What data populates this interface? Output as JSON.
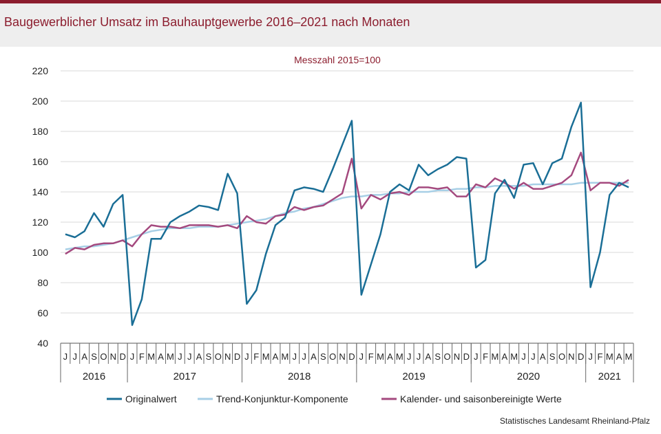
{
  "title": "Baugewerblicher Umsatz im Bauhauptgewerbe 2016–2021 nach Monaten",
  "source": "Statistisches Landesamt Rheinland-Pfalz",
  "colors": {
    "brand": "#8c1d2e",
    "original": "#1a6e96",
    "trend": "#a7cfe6",
    "adjusted": "#a4497e"
  },
  "chart_data": {
    "type": "line",
    "title": "",
    "subtitle": "Messzahl 2015=100",
    "xlabel": "",
    "ylabel": "",
    "ylim": [
      40,
      220
    ],
    "yticks": [
      40,
      60,
      80,
      100,
      120,
      140,
      160,
      180,
      200,
      220
    ],
    "grid": "horizontal",
    "legend_position": "bottom",
    "month_labels": [
      "J",
      "J",
      "A",
      "S",
      "O",
      "N",
      "D",
      "J",
      "F",
      "M",
      "A",
      "M",
      "J",
      "J",
      "A",
      "S",
      "O",
      "N",
      "D",
      "J",
      "F",
      "M",
      "A",
      "M",
      "J",
      "J",
      "A",
      "S",
      "O",
      "N",
      "D",
      "J",
      "F",
      "M",
      "A",
      "M",
      "J",
      "J",
      "A",
      "S",
      "O",
      "N",
      "D",
      "J",
      "F",
      "M",
      "A",
      "M",
      "J",
      "J",
      "A",
      "S",
      "O",
      "N",
      "D",
      "J",
      "F",
      "M",
      "A",
      "M"
    ],
    "year_groups": [
      {
        "label": "2016",
        "months": 7
      },
      {
        "label": "2017",
        "months": 12
      },
      {
        "label": "2018",
        "months": 12
      },
      {
        "label": "2019",
        "months": 12
      },
      {
        "label": "2020",
        "months": 12
      },
      {
        "label": "2021",
        "months": 5
      }
    ],
    "series": [
      {
        "name": "Originalwert",
        "values": [
          112,
          110,
          114,
          126,
          117,
          132,
          138,
          52,
          69,
          109,
          109,
          120,
          124,
          127,
          131,
          130,
          128,
          152,
          139,
          66,
          75,
          99,
          118,
          123,
          141,
          143,
          142,
          140,
          155,
          171,
          187,
          72,
          92,
          112,
          140,
          145,
          141,
          158,
          151,
          155,
          158,
          163,
          162,
          90,
          95,
          139,
          148,
          136,
          158,
          159,
          145,
          159,
          162,
          183,
          199,
          77,
          100,
          138,
          146,
          143
        ]
      },
      {
        "name": "Trend-Konjunktur-Komponente",
        "values": [
          102,
          103,
          104,
          104,
          105,
          106,
          108,
          110,
          112,
          114,
          115,
          116,
          116,
          116,
          117,
          117,
          117,
          118,
          119,
          120,
          121,
          122,
          124,
          126,
          127,
          129,
          130,
          132,
          134,
          136,
          137,
          137,
          138,
          138,
          139,
          139,
          140,
          140,
          140,
          141,
          141,
          142,
          142,
          143,
          143,
          144,
          144,
          144,
          144,
          145,
          145,
          145,
          145,
          145,
          146,
          146,
          146,
          146,
          146,
          146
        ]
      },
      {
        "name": "Kalender- und saisonbereinigte Werte",
        "values": [
          99,
          103,
          102,
          105,
          106,
          106,
          108,
          104,
          112,
          118,
          117,
          117,
          116,
          118,
          118,
          118,
          117,
          118,
          116,
          124,
          120,
          119,
          124,
          125,
          130,
          128,
          130,
          131,
          135,
          139,
          162,
          129,
          138,
          135,
          139,
          140,
          138,
          143,
          143,
          142,
          143,
          137,
          137,
          145,
          143,
          149,
          146,
          142,
          146,
          142,
          142,
          144,
          146,
          151,
          166,
          141,
          146,
          146,
          144,
          148
        ]
      }
    ]
  }
}
